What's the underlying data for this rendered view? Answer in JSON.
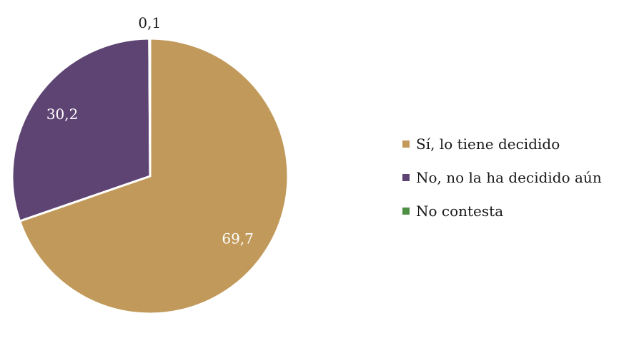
{
  "chart_data": {
    "type": "pie",
    "title": "",
    "categories": [
      "Sí, lo tiene decidido",
      "No, no la ha decidido aún",
      "No contesta"
    ],
    "values": [
      69.7,
      30.2,
      0.1
    ],
    "value_labels": [
      "69,7",
      "30,2",
      "0,1"
    ],
    "colors": [
      "#C19A5B",
      "#5E4473",
      "#4F8F45"
    ],
    "legend": {
      "position": "right",
      "entries": [
        {
          "label": "Sí, lo tiene decidido",
          "color": "#C19A5B"
        },
        {
          "label": "No, no la ha decidido aún",
          "color": "#5E4473"
        },
        {
          "label": "No contesta",
          "color": "#4F8F45"
        }
      ]
    }
  }
}
